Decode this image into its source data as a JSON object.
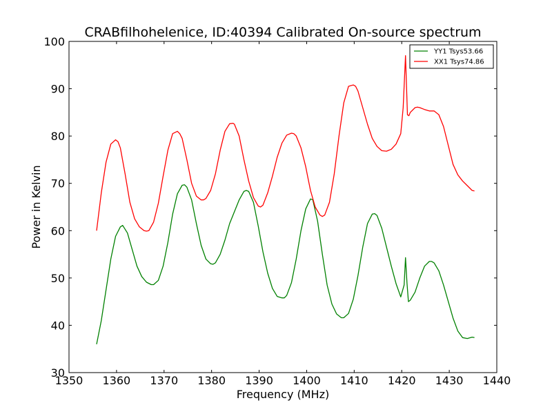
{
  "chart_data": {
    "type": "line",
    "title": "CRABfilhohelenice, ID:40394 Calibrated On-source spectrum",
    "xlabel": "Frequency (MHz)",
    "ylabel": "Power in Kelvin",
    "xlim": [
      1350,
      1440
    ],
    "ylim": [
      30,
      100
    ],
    "x_ticks": [
      "1350",
      "1360",
      "1370",
      "1380",
      "1390",
      "1400",
      "1410",
      "1420",
      "1430",
      "1440"
    ],
    "y_ticks": [
      "30",
      "40",
      "50",
      "60",
      "70",
      "80",
      "90",
      "100"
    ],
    "grid": false,
    "legend_position": "top-right",
    "series": [
      {
        "name": "YY1 Tsys53.66",
        "color": "#008000",
        "x": [
          1355.8,
          1356.8,
          1357.8,
          1358.8,
          1359.8,
          1360.8,
          1361.3,
          1362.3,
          1363.3,
          1364.3,
          1365.3,
          1366.3,
          1367.3,
          1367.8,
          1368.8,
          1369.8,
          1370.8,
          1371.8,
          1372.8,
          1373.8,
          1374.3,
          1374.8,
          1375.8,
          1376.8,
          1377.8,
          1378.8,
          1379.8,
          1380.3,
          1380.8,
          1381.8,
          1382.8,
          1383.8,
          1384.8,
          1385.8,
          1386.8,
          1387.3,
          1387.8,
          1388.8,
          1389.8,
          1390.8,
          1391.8,
          1392.8,
          1393.8,
          1394.8,
          1395.3,
          1395.8,
          1396.8,
          1397.8,
          1398.8,
          1399.8,
          1400.8,
          1401.3,
          1402.3,
          1403.3,
          1404.3,
          1405.3,
          1406.3,
          1407.3,
          1407.8,
          1408.8,
          1409.8,
          1410.8,
          1411.8,
          1412.8,
          1413.8,
          1414.3,
          1414.8,
          1415.8,
          1416.8,
          1417.8,
          1418.8,
          1419.8,
          1420.5,
          1420.8,
          1421.1,
          1421.4,
          1421.8,
          1422.8,
          1423.8,
          1424.8,
          1425.8,
          1426.3,
          1426.8,
          1427.8,
          1428.8,
          1429.8,
          1430.8,
          1431.8,
          1432.8,
          1433.8,
          1434.8,
          1435.3
        ],
        "values": [
          36.0,
          41.0,
          47.5,
          54.0,
          58.8,
          60.8,
          61.1,
          59.5,
          56.0,
          52.5,
          50.3,
          49.1,
          48.6,
          48.6,
          49.5,
          52.5,
          57.5,
          63.5,
          67.8,
          69.6,
          69.7,
          69.2,
          66.5,
          61.5,
          56.9,
          54.0,
          53.0,
          52.9,
          53.2,
          55.0,
          58.0,
          61.5,
          64.0,
          66.5,
          68.3,
          68.5,
          68.3,
          66.0,
          61.0,
          55.5,
          51.0,
          47.8,
          46.1,
          45.8,
          45.8,
          46.3,
          49.0,
          54.0,
          60.0,
          64.6,
          66.7,
          66.5,
          62.0,
          55.0,
          48.5,
          44.5,
          42.4,
          41.6,
          41.6,
          42.5,
          45.5,
          50.5,
          56.5,
          61.5,
          63.5,
          63.6,
          63.2,
          60.5,
          56.5,
          52.5,
          48.8,
          46.0,
          48.5,
          54.3,
          49.0,
          45.0,
          45.3,
          47.0,
          50.0,
          52.5,
          53.5,
          53.5,
          53.2,
          51.5,
          48.5,
          45.0,
          41.5,
          38.8,
          37.4,
          37.2,
          37.5,
          37.4
        ]
      },
      {
        "name": "XX1 Tsys74.86",
        "color": "#ff0000",
        "x": [
          1355.8,
          1356.8,
          1357.8,
          1358.8,
          1359.8,
          1360.3,
          1360.8,
          1361.8,
          1362.8,
          1363.8,
          1364.8,
          1365.8,
          1366.3,
          1366.8,
          1367.8,
          1368.8,
          1369.8,
          1370.8,
          1371.8,
          1372.8,
          1373.3,
          1373.8,
          1374.8,
          1375.8,
          1376.8,
          1377.8,
          1378.3,
          1378.8,
          1379.8,
          1380.8,
          1381.8,
          1382.8,
          1383.8,
          1384.5,
          1384.8,
          1385.8,
          1386.8,
          1387.8,
          1388.8,
          1389.8,
          1390.3,
          1390.8,
          1391.8,
          1392.8,
          1393.8,
          1394.8,
          1395.8,
          1396.8,
          1397.3,
          1397.8,
          1398.8,
          1399.8,
          1400.3,
          1400.8,
          1401.8,
          1402.8,
          1403.3,
          1403.8,
          1404.8,
          1405.8,
          1406.8,
          1407.8,
          1408.8,
          1409.8,
          1410.3,
          1410.8,
          1411.8,
          1412.8,
          1413.8,
          1414.8,
          1415.8,
          1416.8,
          1417.8,
          1418.8,
          1419.8,
          1420.3,
          1420.8,
          1421.2,
          1421.5,
          1421.8,
          1422.8,
          1423.3,
          1423.8,
          1424.8,
          1425.8,
          1426.8,
          1427.8,
          1428.8,
          1429.8,
          1430.8,
          1431.8,
          1432.8,
          1433.8,
          1434.8,
          1435.3
        ],
        "values": [
          60.0,
          68.0,
          74.5,
          78.3,
          79.2,
          78.8,
          77.5,
          72.0,
          66.0,
          62.5,
          60.8,
          60.0,
          59.9,
          60.0,
          61.8,
          65.8,
          71.5,
          77.0,
          80.5,
          81.0,
          80.5,
          79.5,
          75.0,
          70.0,
          67.3,
          66.5,
          66.5,
          66.8,
          68.5,
          72.0,
          77.0,
          81.0,
          82.6,
          82.7,
          82.5,
          80.0,
          75.0,
          70.5,
          67.0,
          65.2,
          65.0,
          65.4,
          68.0,
          71.5,
          75.5,
          78.5,
          80.2,
          80.6,
          80.5,
          80.0,
          77.5,
          73.5,
          71.0,
          68.5,
          65.0,
          63.3,
          63.0,
          63.3,
          66.0,
          72.0,
          80.0,
          87.0,
          90.5,
          90.8,
          90.5,
          89.5,
          86.0,
          82.5,
          79.5,
          77.8,
          76.9,
          76.8,
          77.2,
          78.3,
          80.5,
          86.0,
          97.0,
          84.5,
          84.3,
          85.0,
          86.0,
          86.1,
          86.0,
          85.6,
          85.3,
          85.3,
          84.5,
          82.0,
          78.0,
          74.0,
          71.8,
          70.5,
          69.5,
          68.5,
          68.4
        ]
      }
    ]
  }
}
